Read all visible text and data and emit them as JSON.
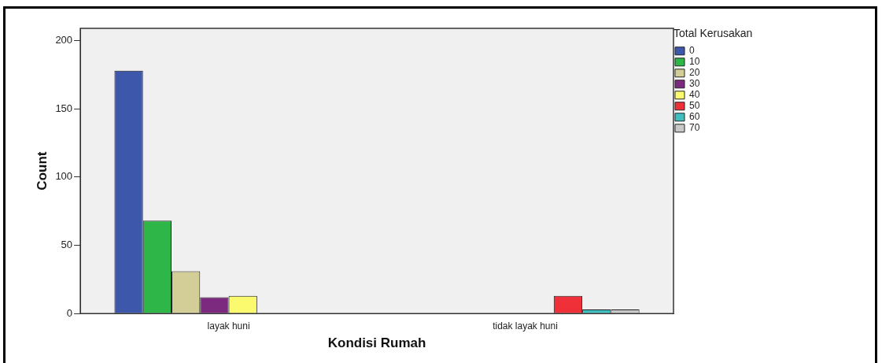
{
  "chart_data": {
    "type": "bar",
    "xlabel": "Kondisi Rumah",
    "ylabel": "Count",
    "legend_title": "Total Kerusakan",
    "categories": [
      "layak huni",
      "tidak layak huni"
    ],
    "series": [
      {
        "name": "0",
        "color": "#3d58aa",
        "values": [
          178,
          null
        ]
      },
      {
        "name": "10",
        "color": "#2eb648",
        "values": [
          68,
          null
        ]
      },
      {
        "name": "20",
        "color": "#d3ce97",
        "values": [
          31,
          null
        ]
      },
      {
        "name": "30",
        "color": "#7b2a7f",
        "values": [
          12,
          null
        ]
      },
      {
        "name": "40",
        "color": "#fbf96d",
        "values": [
          13,
          null
        ]
      },
      {
        "name": "50",
        "color": "#ef3038",
        "values": [
          null,
          13
        ]
      },
      {
        "name": "60",
        "color": "#3fbfbf",
        "values": [
          null,
          3
        ]
      },
      {
        "name": "70",
        "color": "#c8c8c8",
        "values": [
          null,
          3
        ]
      }
    ],
    "ylim": [
      0,
      209
    ],
    "yticks": [
      0,
      50,
      100,
      150,
      200
    ],
    "grid": false,
    "legend": "top right"
  }
}
